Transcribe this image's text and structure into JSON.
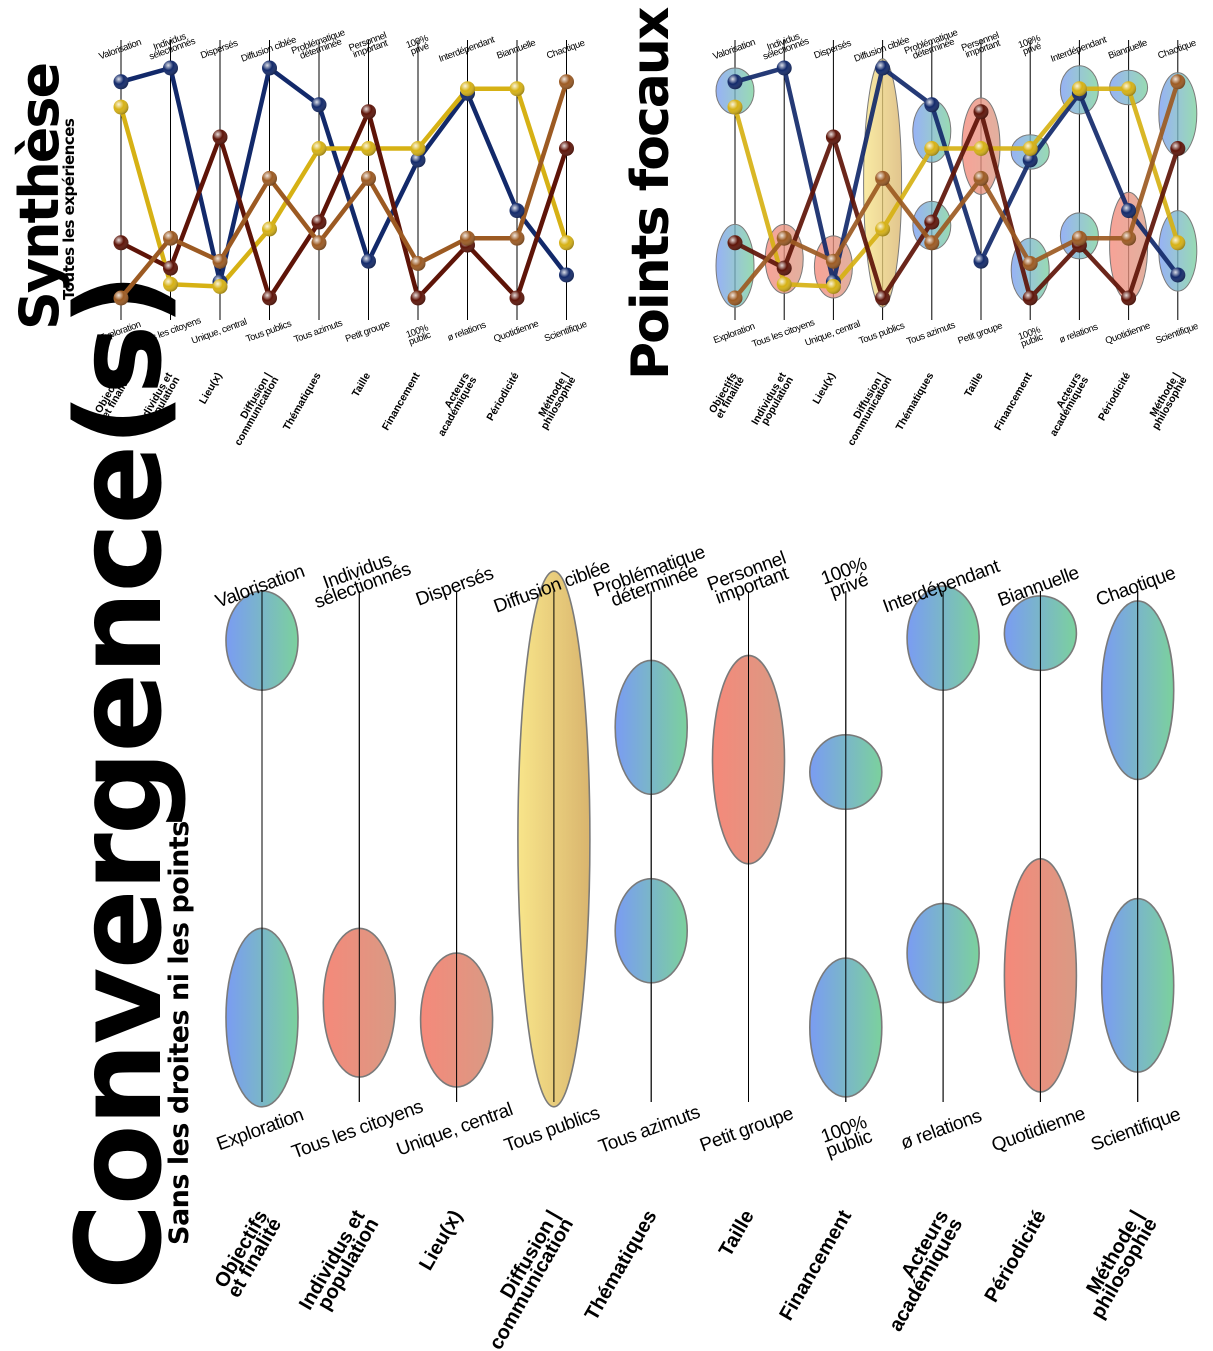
{
  "panels": {
    "synthese": {
      "title": "Synthèse",
      "subtitle": "Toutes les expériences"
    },
    "points_focaux": {
      "title": "Points focaux"
    },
    "convergence": {
      "title": "Convergence(s)",
      "subtitle": "Sans les droites ni les points"
    }
  },
  "colors": {
    "navy": "#12296a",
    "gold": "#d6b114",
    "maroon": "#5e1408",
    "bronze": "#9c5a22",
    "axis": "#000000",
    "ellipse_blue_green": [
      "#7a9cf3",
      "#7bd19d"
    ],
    "ellipse_red": [
      "#f5897a",
      "#d99a84"
    ],
    "ellipse_yellow": [
      "#f8e58a",
      "#d9b56e"
    ],
    "ellipse_stroke": "#7a7a7a"
  },
  "chart_data": {
    "type": "parallel-coordinates",
    "axes": [
      {
        "dimension": [
          "Objectifs",
          "et finalité"
        ],
        "top": [
          "Valorisation"
        ],
        "bottom": [
          "Exploration"
        ]
      },
      {
        "dimension": [
          "Individus et",
          "population"
        ],
        "top": [
          "Individus",
          "sélectionnés"
        ],
        "bottom": [
          "Tous les citoyens"
        ]
      },
      {
        "dimension": [
          "Lieu(x)"
        ],
        "top": [
          "Dispersés"
        ],
        "bottom": [
          "Unique, central"
        ]
      },
      {
        "dimension": [
          "Diffusion |",
          "communication"
        ],
        "top": [
          "Diffusion ciblée"
        ],
        "bottom": [
          "Tous publics"
        ]
      },
      {
        "dimension": [
          "Thématiques"
        ],
        "top": [
          "Problématique",
          "déterminée"
        ],
        "bottom": [
          "Tous azimuts"
        ]
      },
      {
        "dimension": [
          "Taille"
        ],
        "top": [
          "Personnel",
          "important"
        ],
        "bottom": [
          "Petit groupe"
        ]
      },
      {
        "dimension": [
          "Financement"
        ],
        "top": [
          "100%",
          "privé"
        ],
        "bottom": [
          "100%",
          "public"
        ]
      },
      {
        "dimension": [
          "Acteurs",
          "académiques"
        ],
        "top": [
          "Interdépendant"
        ],
        "bottom": [
          "ø relations"
        ]
      },
      {
        "dimension": [
          "Périodicité"
        ],
        "top": [
          "Biannuelle"
        ],
        "bottom": [
          "Quotidienne"
        ]
      },
      {
        "dimension": [
          "Méthode |",
          "philosophie"
        ],
        "top": [
          "Chaotique"
        ],
        "bottom": [
          "Scientifique"
        ]
      }
    ],
    "value_range": [
      0,
      1
    ],
    "value_meaning": "1 = top pole label, 0 = bottom pole label",
    "series": [
      {
        "color": "navy",
        "values": [
          0.94,
          1.0,
          0.07,
          1.0,
          0.84,
          0.16,
          0.6,
          0.89,
          0.38,
          0.1
        ]
      },
      {
        "color": "gold",
        "values": [
          0.83,
          0.06,
          0.05,
          0.3,
          0.65,
          0.65,
          0.65,
          0.91,
          0.91,
          0.24
        ]
      },
      {
        "color": "maroon",
        "values": [
          0.24,
          0.13,
          0.7,
          0.0,
          0.33,
          0.81,
          0.0,
          0.23,
          0.0,
          0.65
        ]
      },
      {
        "color": "bronze",
        "values": [
          0.0,
          0.26,
          0.16,
          0.52,
          0.24,
          0.52,
          0.15,
          0.26,
          0.26,
          0.94
        ]
      }
    ],
    "focal_zones": [
      {
        "axis": 0,
        "low": 0.8,
        "high": 1.0,
        "fill": "blue-green"
      },
      {
        "axis": 0,
        "low": -0.04,
        "high": 0.32,
        "fill": "blue-green"
      },
      {
        "axis": 1,
        "low": 0.02,
        "high": 0.32,
        "fill": "red"
      },
      {
        "axis": 2,
        "low": 0.0,
        "high": 0.27,
        "fill": "red"
      },
      {
        "axis": 3,
        "low": -0.04,
        "high": 1.04,
        "fill": "yellow"
      },
      {
        "axis": 4,
        "low": 0.59,
        "high": 0.86,
        "fill": "blue-green"
      },
      {
        "axis": 4,
        "low": 0.21,
        "high": 0.42,
        "fill": "blue-green"
      },
      {
        "axis": 5,
        "low": 0.45,
        "high": 0.87,
        "fill": "red"
      },
      {
        "axis": 6,
        "low": 0.56,
        "high": 0.71,
        "fill": "blue-green"
      },
      {
        "axis": 6,
        "low": -0.02,
        "high": 0.26,
        "fill": "blue-green"
      },
      {
        "axis": 7,
        "low": 0.8,
        "high": 1.01,
        "fill": "blue-green"
      },
      {
        "axis": 7,
        "low": 0.17,
        "high": 0.37,
        "fill": "blue-green"
      },
      {
        "axis": 8,
        "low": -0.01,
        "high": 0.46,
        "fill": "red"
      },
      {
        "axis": 8,
        "low": 0.84,
        "high": 0.99,
        "fill": "blue-green"
      },
      {
        "axis": 9,
        "low": 0.62,
        "high": 0.98,
        "fill": "blue-green"
      },
      {
        "axis": 9,
        "low": 0.03,
        "high": 0.38,
        "fill": "blue-green"
      }
    ]
  }
}
